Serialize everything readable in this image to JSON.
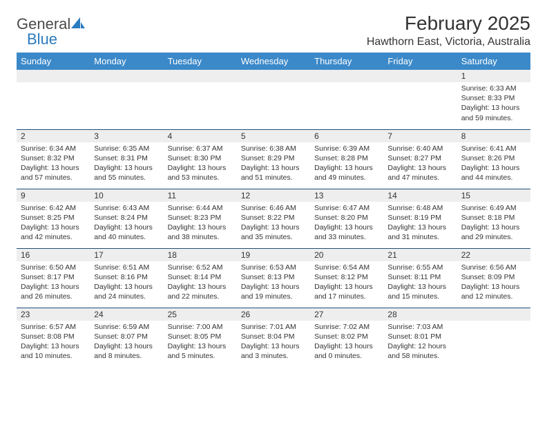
{
  "brand": {
    "general": "General",
    "blue": "Blue"
  },
  "title": "February 2025",
  "location": "Hawthorn East, Victoria, Australia",
  "colors": {
    "header_bg": "#3b89c9",
    "header_text": "#ffffff",
    "daynum_bg": "#eeeeee",
    "row_border": "#1f4e79",
    "text": "#333333",
    "logo_blue": "#2b7bbf",
    "logo_gray": "#4a4a4a"
  },
  "weekdays": [
    "Sunday",
    "Monday",
    "Tuesday",
    "Wednesday",
    "Thursday",
    "Friday",
    "Saturday"
  ],
  "weeks": [
    [
      null,
      null,
      null,
      null,
      null,
      null,
      {
        "n": "1",
        "sr": "6:33 AM",
        "ss": "8:33 PM",
        "dl": "13 hours and 59 minutes."
      }
    ],
    [
      {
        "n": "2",
        "sr": "6:34 AM",
        "ss": "8:32 PM",
        "dl": "13 hours and 57 minutes."
      },
      {
        "n": "3",
        "sr": "6:35 AM",
        "ss": "8:31 PM",
        "dl": "13 hours and 55 minutes."
      },
      {
        "n": "4",
        "sr": "6:37 AM",
        "ss": "8:30 PM",
        "dl": "13 hours and 53 minutes."
      },
      {
        "n": "5",
        "sr": "6:38 AM",
        "ss": "8:29 PM",
        "dl": "13 hours and 51 minutes."
      },
      {
        "n": "6",
        "sr": "6:39 AM",
        "ss": "8:28 PM",
        "dl": "13 hours and 49 minutes."
      },
      {
        "n": "7",
        "sr": "6:40 AM",
        "ss": "8:27 PM",
        "dl": "13 hours and 47 minutes."
      },
      {
        "n": "8",
        "sr": "6:41 AM",
        "ss": "8:26 PM",
        "dl": "13 hours and 44 minutes."
      }
    ],
    [
      {
        "n": "9",
        "sr": "6:42 AM",
        "ss": "8:25 PM",
        "dl": "13 hours and 42 minutes."
      },
      {
        "n": "10",
        "sr": "6:43 AM",
        "ss": "8:24 PM",
        "dl": "13 hours and 40 minutes."
      },
      {
        "n": "11",
        "sr": "6:44 AM",
        "ss": "8:23 PM",
        "dl": "13 hours and 38 minutes."
      },
      {
        "n": "12",
        "sr": "6:46 AM",
        "ss": "8:22 PM",
        "dl": "13 hours and 35 minutes."
      },
      {
        "n": "13",
        "sr": "6:47 AM",
        "ss": "8:20 PM",
        "dl": "13 hours and 33 minutes."
      },
      {
        "n": "14",
        "sr": "6:48 AM",
        "ss": "8:19 PM",
        "dl": "13 hours and 31 minutes."
      },
      {
        "n": "15",
        "sr": "6:49 AM",
        "ss": "8:18 PM",
        "dl": "13 hours and 29 minutes."
      }
    ],
    [
      {
        "n": "16",
        "sr": "6:50 AM",
        "ss": "8:17 PM",
        "dl": "13 hours and 26 minutes."
      },
      {
        "n": "17",
        "sr": "6:51 AM",
        "ss": "8:16 PM",
        "dl": "13 hours and 24 minutes."
      },
      {
        "n": "18",
        "sr": "6:52 AM",
        "ss": "8:14 PM",
        "dl": "13 hours and 22 minutes."
      },
      {
        "n": "19",
        "sr": "6:53 AM",
        "ss": "8:13 PM",
        "dl": "13 hours and 19 minutes."
      },
      {
        "n": "20",
        "sr": "6:54 AM",
        "ss": "8:12 PM",
        "dl": "13 hours and 17 minutes."
      },
      {
        "n": "21",
        "sr": "6:55 AM",
        "ss": "8:11 PM",
        "dl": "13 hours and 15 minutes."
      },
      {
        "n": "22",
        "sr": "6:56 AM",
        "ss": "8:09 PM",
        "dl": "13 hours and 12 minutes."
      }
    ],
    [
      {
        "n": "23",
        "sr": "6:57 AM",
        "ss": "8:08 PM",
        "dl": "13 hours and 10 minutes."
      },
      {
        "n": "24",
        "sr": "6:59 AM",
        "ss": "8:07 PM",
        "dl": "13 hours and 8 minutes."
      },
      {
        "n": "25",
        "sr": "7:00 AM",
        "ss": "8:05 PM",
        "dl": "13 hours and 5 minutes."
      },
      {
        "n": "26",
        "sr": "7:01 AM",
        "ss": "8:04 PM",
        "dl": "13 hours and 3 minutes."
      },
      {
        "n": "27",
        "sr": "7:02 AM",
        "ss": "8:02 PM",
        "dl": "13 hours and 0 minutes."
      },
      {
        "n": "28",
        "sr": "7:03 AM",
        "ss": "8:01 PM",
        "dl": "12 hours and 58 minutes."
      },
      null
    ]
  ],
  "labels": {
    "sunrise": "Sunrise:",
    "sunset": "Sunset:",
    "daylight": "Daylight:"
  }
}
